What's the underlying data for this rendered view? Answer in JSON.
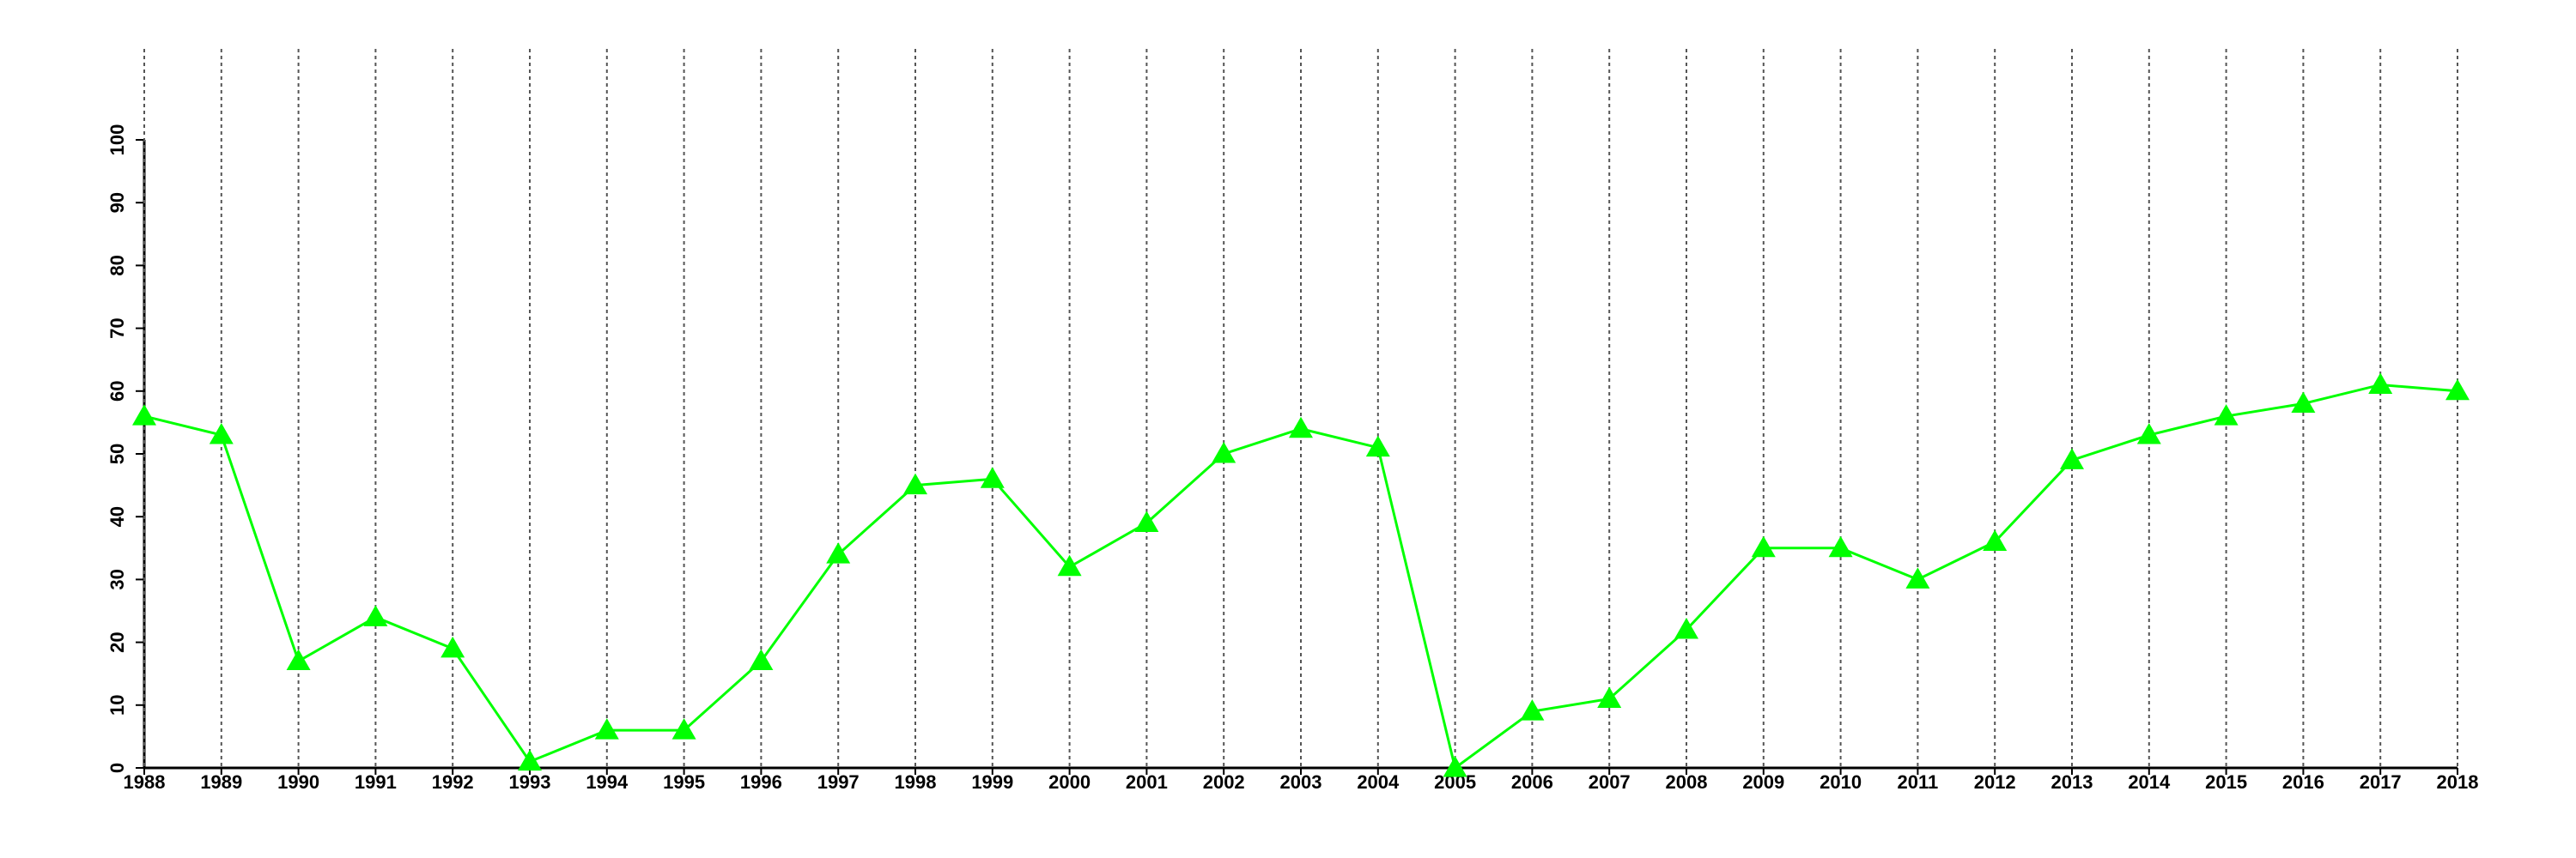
{
  "chart_data": {
    "type": "line",
    "x": [
      1988,
      1989,
      1990,
      1991,
      1992,
      1993,
      1994,
      1995,
      1996,
      1997,
      1998,
      1999,
      2000,
      2001,
      2002,
      2003,
      2004,
      2005,
      2006,
      2007,
      2008,
      2009,
      2010,
      2011,
      2012,
      2013,
      2014,
      2015,
      2016,
      2017,
      2018
    ],
    "series": [
      {
        "color": "#00ff00",
        "values": [
          56,
          53,
          17,
          24,
          19,
          1,
          6,
          6,
          17,
          34,
          45,
          46,
          32,
          39,
          50,
          54,
          51,
          0,
          9,
          11,
          22,
          35,
          35,
          30,
          36,
          49,
          53,
          56,
          58,
          61,
          60
        ]
      }
    ],
    "xlim": [
      1988,
      2018
    ],
    "xticks": [
      1988,
      1989,
      1990,
      1991,
      1992,
      1993,
      1994,
      1995,
      1996,
      1997,
      1998,
      1999,
      2000,
      2001,
      2002,
      2003,
      2004,
      2005,
      2006,
      2007,
      2008,
      2009,
      2010,
      2011,
      2012,
      2013,
      2014,
      2015,
      2016,
      2017,
      2018
    ],
    "ylim": [
      0,
      100
    ],
    "yticks": [
      0,
      10,
      20,
      30,
      40,
      50,
      60,
      70,
      80,
      90,
      100
    ],
    "grid": true
  }
}
